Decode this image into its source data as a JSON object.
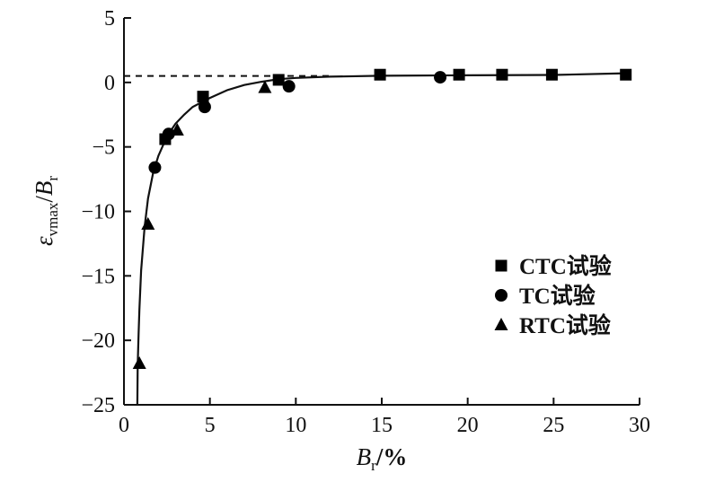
{
  "chart_data": {
    "type": "scatter",
    "title": "",
    "xlabel": {
      "main": "B",
      "sub": "r",
      "suffix": "/%"
    },
    "ylabel": {
      "eps": "ε",
      "eps_sub": "vmax",
      "slash": "/",
      "B": "B",
      "B_sub": "r"
    },
    "xlim": [
      0,
      30
    ],
    "ylim": [
      -25,
      5
    ],
    "x_ticks": [
      0,
      5,
      10,
      15,
      20,
      25,
      30
    ],
    "y_ticks": [
      5,
      0,
      -5,
      -10,
      -15,
      -20,
      -25
    ],
    "x_tick_labels": [
      "0",
      "5",
      "10",
      "15",
      "20",
      "25",
      "30"
    ],
    "y_tick_labels": [
      "5",
      "0",
      "−5",
      "−10",
      "−15",
      "−20",
      "−25"
    ],
    "reference_line": {
      "y": 0.5,
      "style": "dashed"
    },
    "legend_position": "right",
    "series": [
      {
        "name": "CTC试验",
        "marker": "square",
        "points": [
          [
            2.4,
            -4.4
          ],
          [
            4.6,
            -1.1
          ],
          [
            9.0,
            0.2
          ],
          [
            14.9,
            0.6
          ],
          [
            19.5,
            0.6
          ],
          [
            22.0,
            0.6
          ],
          [
            24.9,
            0.6
          ],
          [
            29.2,
            0.6
          ]
        ]
      },
      {
        "name": "TC试验",
        "marker": "circle",
        "points": [
          [
            1.8,
            -6.6
          ],
          [
            2.6,
            -4.0
          ],
          [
            4.7,
            -1.9
          ],
          [
            9.6,
            -0.3
          ],
          [
            18.4,
            0.4
          ]
        ]
      },
      {
        "name": "RTC试验",
        "marker": "triangle",
        "points": [
          [
            0.9,
            -21.8
          ],
          [
            1.4,
            -11.0
          ],
          [
            3.1,
            -3.7
          ],
          [
            8.2,
            -0.4
          ]
        ]
      }
    ],
    "fit_curve": [
      [
        0.78,
        -25.0
      ],
      [
        0.8,
        -21.9
      ],
      [
        0.85,
        -19.5
      ],
      [
        0.9,
        -17.6
      ],
      [
        1.0,
        -14.6
      ],
      [
        1.2,
        -11.2
      ],
      [
        1.4,
        -9.0
      ],
      [
        1.7,
        -7.0
      ],
      [
        2.0,
        -5.7
      ],
      [
        2.5,
        -4.2
      ],
      [
        3.0,
        -3.2
      ],
      [
        3.5,
        -2.5
      ],
      [
        4.0,
        -1.9
      ],
      [
        5.0,
        -1.2
      ],
      [
        6.0,
        -0.6
      ],
      [
        7.0,
        -0.2
      ],
      [
        8.0,
        0.05
      ],
      [
        9.0,
        0.25
      ],
      [
        10.0,
        0.35
      ],
      [
        12.0,
        0.45
      ],
      [
        15.0,
        0.52
      ],
      [
        20.0,
        0.55
      ],
      [
        25.0,
        0.58
      ],
      [
        29.5,
        0.72
      ]
    ]
  }
}
